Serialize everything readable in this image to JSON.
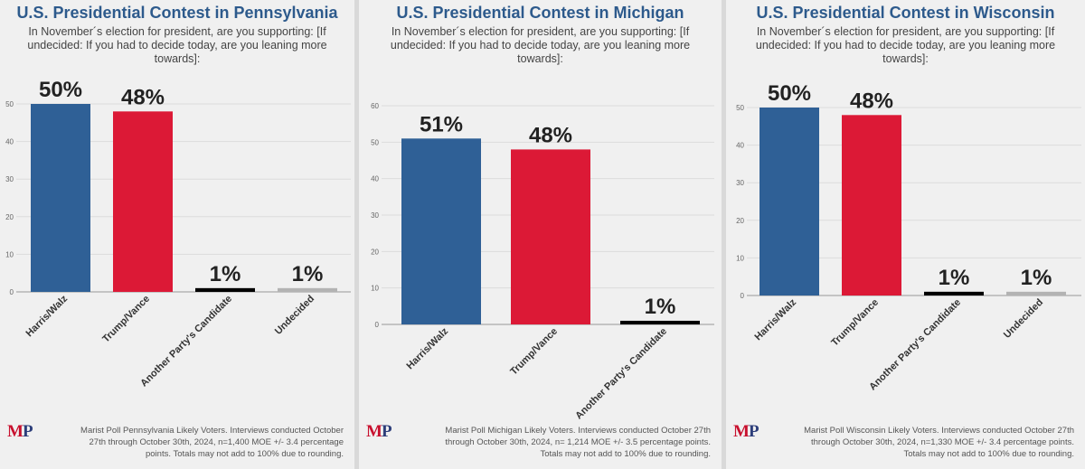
{
  "chart_data": [
    {
      "type": "bar",
      "title": "U.S. Presidential Contest in Pennsylvania",
      "subtitle": "In November´s election for president, are you supporting: [If undecided: If you had to decide today, are you leaning more towards]:",
      "categories": [
        "Harris/Walz",
        "Trump/Vance",
        "Another Party's Candidate",
        "Undecided"
      ],
      "values": [
        50,
        48,
        1,
        1
      ],
      "labels": [
        "50%",
        "48%",
        "1%",
        "1%"
      ],
      "colors": [
        "#2f6096",
        "#dc1936",
        "#000000",
        "#b3b3b3"
      ],
      "ylim": [
        0,
        50
      ],
      "yticks": [
        0,
        10,
        20,
        30,
        40,
        50
      ],
      "grid": true,
      "footnote": "Marist Poll Pennsylvania Likely Voters. Interviews conducted October 27th through October 30th, 2024, n=1,400 MOE +/- 3.4 percentage points. Totals may not add to 100% due to rounding."
    },
    {
      "type": "bar",
      "title": "U.S. Presidential Contest in Michigan",
      "subtitle": "In November´s election for president, are you supporting: [If undecided: If you had to decide today, are you leaning more towards]:",
      "categories": [
        "Harris/Walz",
        "Trump/Vance",
        "Another Party's Candidate"
      ],
      "values": [
        51,
        48,
        1
      ],
      "labels": [
        "51%",
        "48%",
        "1%"
      ],
      "colors": [
        "#2f6096",
        "#dc1936",
        "#000000"
      ],
      "ylim": [
        0,
        60
      ],
      "yticks": [
        0,
        10,
        20,
        30,
        40,
        50,
        60
      ],
      "grid": true,
      "footnote": "Marist Poll Michigan Likely Voters. Interviews conducted October 27th through October 30th, 2024, n= 1,214 MOE +/- 3.5 percentage points. Totals may not add to 100% due to rounding."
    },
    {
      "type": "bar",
      "title": "U.S. Presidential Contest in Wisconsin",
      "subtitle": "In November´s election for president, are you supporting: [If undecided: If you had to decide today, are you leaning more towards]:",
      "categories": [
        "Harris/Walz",
        "Trump/Vance",
        "Another Party's Candidate",
        "Undecided"
      ],
      "values": [
        50,
        48,
        1,
        1
      ],
      "labels": [
        "50%",
        "48%",
        "1%",
        "1%"
      ],
      "colors": [
        "#2f6096",
        "#dc1936",
        "#000000",
        "#b3b3b3"
      ],
      "ylim": [
        0,
        50
      ],
      "yticks": [
        0,
        10,
        20,
        30,
        40,
        50
      ],
      "grid": true,
      "footnote": "Marist Poll Wisconsin Likely Voters. Interviews conducted October 27th through October 30th, 2024, n=1,330 MOE +/- 3.4 percentage points. Totals may not add to 100% due to rounding."
    }
  ],
  "logo": {
    "m": "M",
    "p": "P"
  }
}
